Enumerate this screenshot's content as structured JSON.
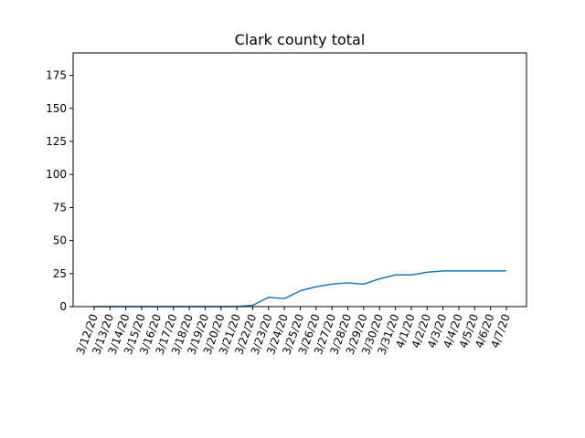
{
  "chart_data": {
    "type": "line",
    "title": "Clark county total",
    "xlabel": "",
    "ylabel": "",
    "categories": [
      "3/12/20",
      "3/13/20",
      "3/14/20",
      "3/15/20",
      "3/16/20",
      "3/17/20",
      "3/18/20",
      "3/19/20",
      "3/20/20",
      "3/21/20",
      "3/22/20",
      "3/23/20",
      "3/24/20",
      "3/25/20",
      "3/26/20",
      "3/27/20",
      "3/28/20",
      "3/29/20",
      "3/30/20",
      "3/31/20",
      "4/1/20",
      "4/2/20",
      "4/3/20",
      "4/4/20",
      "4/5/20",
      "4/6/20",
      "4/7/20"
    ],
    "series": [
      {
        "values": [
          0,
          0,
          0,
          0,
          0,
          0,
          0,
          0,
          0,
          0,
          1,
          7,
          6,
          12,
          15,
          17,
          18,
          17,
          21,
          24,
          24,
          26,
          27,
          27,
          27,
          27,
          27
        ],
        "color": "#1f77b4"
      }
    ],
    "ylim": [
      0,
      192
    ],
    "yticks": [
      0,
      25,
      50,
      75,
      100,
      125,
      150,
      175
    ],
    "grid": false,
    "legend": "none"
  }
}
